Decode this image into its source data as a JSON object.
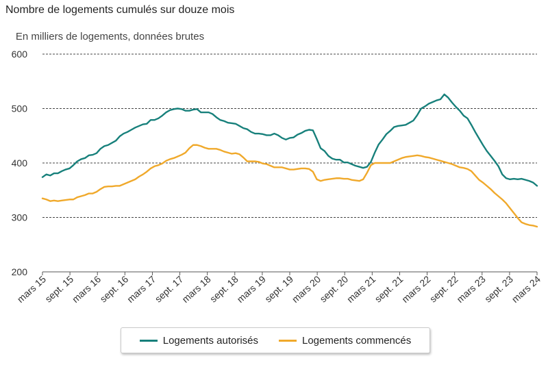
{
  "chart_data": {
    "type": "line",
    "title": "Nombre de logements cumulés sur douze mois",
    "ylabel": "En milliers de logements, données brutes",
    "ylim": [
      200,
      600
    ],
    "yticks": [
      200,
      300,
      400,
      500,
      600
    ],
    "x_ticks": [
      "mars 15",
      "sept. 15",
      "mars 16",
      "sept. 16",
      "mars 17",
      "sept. 17",
      "mars 18",
      "sept. 18",
      "mars 19",
      "sept. 19",
      "mars 20",
      "sept. 20",
      "mars 21",
      "sept. 21",
      "mars 22",
      "sept. 22",
      "mars 23",
      "sept. 23",
      "mars 24"
    ],
    "grid": true,
    "legend_position": "bottom",
    "series": [
      {
        "name": "Logements autorisés",
        "color": "#17807b",
        "values": [
          374,
          379,
          377,
          381,
          381,
          385,
          388,
          390,
          396,
          403,
          407,
          409,
          414,
          415,
          418,
          426,
          431,
          433,
          437,
          441,
          449,
          454,
          457,
          461,
          465,
          468,
          471,
          472,
          479,
          479,
          482,
          487,
          493,
          497,
          499,
          500,
          499,
          496,
          496,
          498,
          499,
          493,
          493,
          493,
          490,
          484,
          479,
          477,
          474,
          473,
          472,
          468,
          464,
          462,
          457,
          454,
          454,
          453,
          451,
          451,
          454,
          451,
          446,
          443,
          446,
          447,
          452,
          455,
          459,
          461,
          460,
          444,
          427,
          422,
          413,
          408,
          406,
          406,
          401,
          401,
          398,
          395,
          393,
          391,
          393,
          402,
          419,
          434,
          443,
          453,
          459,
          466,
          468,
          469,
          470,
          474,
          478,
          488,
          500,
          504,
          509,
          512,
          515,
          517,
          526,
          520,
          511,
          503,
          496,
          487,
          482,
          470,
          457,
          445,
          433,
          422,
          413,
          404,
          394,
          379,
          372,
          370,
          371,
          370,
          371,
          369,
          367,
          364,
          358
        ]
      },
      {
        "name": "Logements commencés",
        "color": "#f0a92b",
        "values": [
          335,
          333,
          330,
          331,
          330,
          331,
          332,
          333,
          333,
          337,
          339,
          341,
          344,
          344,
          347,
          352,
          356,
          357,
          357,
          358,
          358,
          361,
          364,
          367,
          370,
          375,
          379,
          384,
          390,
          394,
          396,
          399,
          404,
          407,
          409,
          412,
          415,
          419,
          427,
          433,
          433,
          431,
          428,
          426,
          426,
          426,
          424,
          421,
          419,
          417,
          418,
          416,
          410,
          403,
          403,
          403,
          402,
          399,
          398,
          395,
          392,
          392,
          392,
          390,
          388,
          388,
          389,
          390,
          390,
          389,
          384,
          370,
          367,
          369,
          370,
          371,
          372,
          372,
          371,
          371,
          369,
          368,
          367,
          370,
          382,
          396,
          400,
          400,
          400,
          400,
          400,
          403,
          406,
          409,
          411,
          412,
          413,
          414,
          413,
          411,
          410,
          408,
          406,
          404,
          402,
          400,
          398,
          395,
          392,
          391,
          389,
          385,
          377,
          369,
          364,
          358,
          352,
          345,
          339,
          333,
          326,
          317,
          308,
          299,
          291,
          288,
          286,
          285,
          283
        ]
      }
    ]
  }
}
